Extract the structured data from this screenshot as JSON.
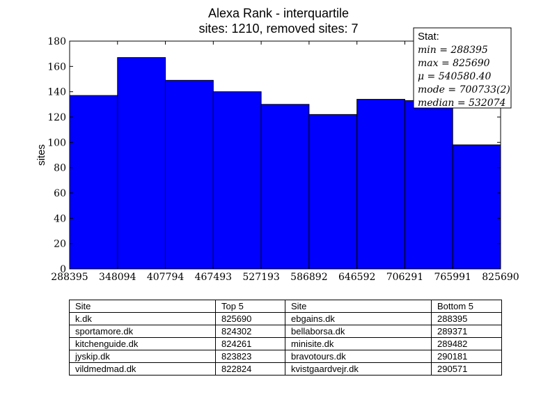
{
  "chart_data": {
    "type": "bar",
    "title": "Alexa Rank - interquartile",
    "subtitle": "sites: 1210, removed sites: 7",
    "xlabel": "",
    "ylabel": "sites",
    "bin_edges": [
      288395,
      348094,
      407794,
      467493,
      527193,
      586892,
      646592,
      706291,
      765991,
      825690
    ],
    "values": [
      137,
      167,
      149,
      140,
      130,
      122,
      134,
      133,
      98
    ],
    "xlim": [
      288395,
      825690
    ],
    "ylim": [
      0,
      180
    ],
    "yticks": [
      0,
      20,
      40,
      60,
      80,
      100,
      120,
      140,
      160,
      180
    ],
    "xtick_labels": [
      "288395",
      "348094",
      "407794",
      "467493",
      "527193",
      "586892",
      "646592",
      "706291",
      "765991",
      "825690"
    ],
    "bar_color": "#0000ff",
    "grid": false,
    "stats_box": {
      "title": "Stat:",
      "lines": [
        "min = 288395",
        "max = 825690",
        "μ = 540580.40",
        "mode = 700733(2)",
        "median = 532074"
      ],
      "placement": "top-right"
    }
  },
  "table": {
    "headers": [
      "Site",
      "Top 5",
      "Site",
      "Bottom 5"
    ],
    "rows": [
      [
        "k.dk",
        "825690",
        "ebgains.dk",
        "288395"
      ],
      [
        "sportamore.dk",
        "824302",
        "bellaborsa.dk",
        "289371"
      ],
      [
        "kitchenguide.dk",
        "824261",
        "minisite.dk",
        "289482"
      ],
      [
        "jyskip.dk",
        "823823",
        "bravotours.dk",
        "290181"
      ],
      [
        "vildmedmad.dk",
        "822824",
        "kvistgaardvejr.dk",
        "290571"
      ]
    ]
  }
}
